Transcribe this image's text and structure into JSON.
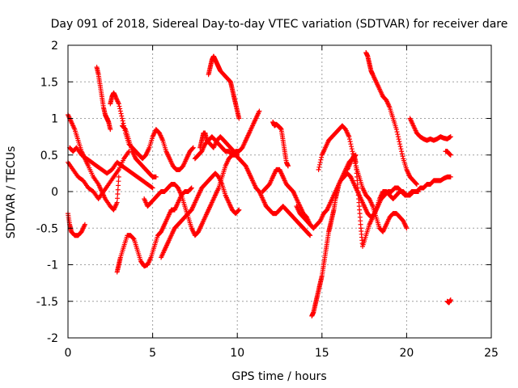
{
  "chart_data": {
    "type": "scatter",
    "title": "Day 091 of 2018, Sidereal Day-to-day VTEC variation (SDTVAR) for receiver dare",
    "xlabel": "GPS time / hours",
    "ylabel": "SDTVAR / TECUs",
    "xlim": [
      0,
      25
    ],
    "ylim": [
      -2,
      2
    ],
    "xticks": [
      0,
      5,
      10,
      15,
      20,
      25
    ],
    "yticks": [
      -2,
      -1.5,
      -1,
      -0.5,
      0,
      0.5,
      1,
      1.5,
      2
    ],
    "grid": true,
    "marker": "plus",
    "color": "#ff0000",
    "series": [
      {
        "x": [
          0.0,
          0.2,
          0.4,
          0.6,
          0.8,
          1.0,
          1.2,
          1.5,
          1.8,
          2.0,
          2.2,
          2.5,
          2.7,
          2.9,
          3.0
        ],
        "y": [
          1.05,
          0.95,
          0.85,
          0.7,
          0.55,
          0.45,
          0.35,
          0.2,
          0.1,
          0.0,
          -0.1,
          -0.2,
          -0.25,
          -0.15,
          0.2
        ]
      },
      {
        "x": [
          0.0,
          0.1,
          0.2,
          0.4,
          0.6,
          0.8,
          1.0
        ],
        "y": [
          -0.3,
          -0.45,
          -0.55,
          -0.6,
          -0.6,
          -0.55,
          -0.45
        ]
      },
      {
        "x": [
          0.1,
          0.3,
          0.5,
          0.8,
          1.1,
          1.4,
          1.7,
          2.0,
          2.3,
          2.6,
          2.9,
          3.2,
          3.5,
          3.8,
          4.1,
          4.4,
          4.7,
          5.0
        ],
        "y": [
          0.6,
          0.55,
          0.6,
          0.5,
          0.45,
          0.4,
          0.35,
          0.3,
          0.25,
          0.3,
          0.4,
          0.35,
          0.3,
          0.25,
          0.2,
          0.15,
          0.1,
          0.05
        ]
      },
      {
        "x": [
          0.0,
          0.3,
          0.6,
          0.9,
          1.2,
          1.5,
          1.8,
          2.1,
          2.4,
          2.7,
          3.0,
          3.3,
          3.6
        ],
        "y": [
          0.4,
          0.3,
          0.2,
          0.15,
          0.05,
          0.0,
          -0.1,
          0.0,
          0.1,
          0.2,
          0.3,
          0.45,
          0.55
        ]
      },
      {
        "x": [
          1.7,
          1.8,
          1.9,
          2.0,
          2.1,
          2.2,
          2.3,
          2.4,
          2.5
        ],
        "y": [
          1.7,
          1.6,
          1.45,
          1.3,
          1.15,
          1.05,
          1.0,
          0.95,
          0.85
        ]
      },
      {
        "x": [
          2.5,
          2.6,
          2.7,
          2.8,
          3.0,
          3.2,
          3.4,
          3.6,
          3.8,
          4.0,
          4.2,
          4.4,
          4.6,
          4.8,
          5.0,
          5.2,
          5.4,
          5.6,
          5.8,
          6.0,
          6.2,
          6.4,
          6.6,
          6.8,
          7.0,
          7.2,
          7.4
        ],
        "y": [
          1.2,
          1.3,
          1.35,
          1.3,
          1.2,
          1.0,
          0.8,
          0.65,
          0.6,
          0.55,
          0.5,
          0.45,
          0.5,
          0.6,
          0.75,
          0.85,
          0.8,
          0.7,
          0.55,
          0.45,
          0.35,
          0.3,
          0.3,
          0.35,
          0.45,
          0.55,
          0.6
        ]
      },
      {
        "x": [
          2.9,
          3.0,
          3.1,
          3.3,
          3.5,
          3.7,
          3.9,
          4.1,
          4.3,
          4.5,
          4.7,
          4.9,
          5.1,
          5.3,
          5.5,
          5.7,
          5.9,
          6.1,
          6.3,
          6.5,
          6.7,
          6.9,
          7.1,
          7.3
        ],
        "y": [
          -1.1,
          -1.0,
          -0.9,
          -0.75,
          -0.6,
          -0.6,
          -0.65,
          -0.8,
          -0.95,
          -1.02,
          -1.0,
          -0.9,
          -0.75,
          -0.6,
          -0.55,
          -0.45,
          -0.35,
          -0.25,
          -0.25,
          -0.15,
          -0.05,
          0.0,
          0.0,
          0.05
        ]
      },
      {
        "x": [
          3.2,
          3.4,
          3.6,
          3.8,
          4.0,
          4.2,
          4.4,
          4.6,
          4.8,
          5.0,
          5.2
        ],
        "y": [
          0.9,
          0.85,
          0.7,
          0.55,
          0.45,
          0.4,
          0.35,
          0.3,
          0.25,
          0.2,
          0.2
        ]
      },
      {
        "x": [
          4.5,
          4.7,
          4.9,
          5.1,
          5.3,
          5.5,
          5.7,
          5.9,
          6.1,
          6.3,
          6.5,
          6.7,
          6.9,
          7.1,
          7.3,
          7.5,
          7.7,
          7.9,
          8.1,
          8.3,
          8.5,
          8.7,
          8.9,
          9.1,
          9.3,
          9.5,
          9.7,
          9.9,
          10.1,
          10.3,
          10.5,
          10.7,
          10.9,
          11.1,
          11.3
        ],
        "y": [
          -0.1,
          -0.2,
          -0.15,
          -0.1,
          -0.05,
          0.0,
          0.0,
          0.05,
          0.1,
          0.1,
          0.05,
          -0.05,
          -0.2,
          -0.35,
          -0.5,
          -0.6,
          -0.55,
          -0.45,
          -0.35,
          -0.25,
          -0.15,
          -0.05,
          0.05,
          0.2,
          0.35,
          0.45,
          0.5,
          0.55,
          0.55,
          0.6,
          0.7,
          0.8,
          0.9,
          1.0,
          1.1
        ]
      },
      {
        "x": [
          5.5,
          5.7,
          5.9,
          6.1,
          6.3,
          6.5,
          6.7,
          6.9,
          7.1,
          7.3,
          7.5,
          7.7,
          7.9,
          8.1,
          8.3,
          8.5,
          8.7,
          8.9,
          9.1,
          9.3,
          9.5,
          9.7,
          9.9,
          10.1
        ],
        "y": [
          -0.9,
          -0.8,
          -0.7,
          -0.6,
          -0.5,
          -0.45,
          -0.4,
          -0.35,
          -0.3,
          -0.25,
          -0.15,
          -0.05,
          0.05,
          0.1,
          0.15,
          0.2,
          0.25,
          0.2,
          0.1,
          -0.05,
          -0.15,
          -0.25,
          -0.3,
          -0.25
        ]
      },
      {
        "x": [
          7.8,
          7.9,
          8.0,
          8.1,
          8.2,
          8.4,
          8.6,
          8.8,
          9.0,
          9.2,
          9.4,
          9.6,
          9.8,
          10.0
        ],
        "y": [
          0.6,
          0.7,
          0.8,
          0.8,
          0.7,
          0.65,
          0.6,
          0.7,
          0.75,
          0.7,
          0.65,
          0.6,
          0.55,
          0.5
        ]
      },
      {
        "x": [
          8.3,
          8.4,
          8.5,
          8.6,
          8.7,
          8.8,
          8.9,
          9.0,
          9.2,
          9.4,
          9.6,
          9.7,
          9.8,
          9.9,
          10.0,
          10.1
        ],
        "y": [
          1.6,
          1.7,
          1.8,
          1.85,
          1.8,
          1.75,
          1.7,
          1.65,
          1.6,
          1.55,
          1.5,
          1.4,
          1.3,
          1.2,
          1.1,
          1.0
        ]
      },
      {
        "x": [
          7.5,
          7.7,
          7.9,
          8.1,
          8.3,
          8.5,
          8.7,
          8.9,
          9.1,
          9.3,
          9.5,
          9.7,
          9.9,
          10.1,
          10.3,
          10.5,
          10.7,
          10.9,
          11.1,
          11.3,
          11.5,
          11.7,
          11.9,
          12.1,
          12.3,
          12.5,
          12.7,
          12.9,
          13.1,
          13.3,
          13.5,
          13.7,
          13.9,
          14.1,
          14.3
        ],
        "y": [
          0.45,
          0.5,
          0.55,
          0.65,
          0.7,
          0.75,
          0.7,
          0.65,
          0.6,
          0.55,
          0.55,
          0.5,
          0.5,
          0.45,
          0.4,
          0.35,
          0.25,
          0.15,
          0.05,
          0.0,
          -0.1,
          -0.2,
          -0.25,
          -0.3,
          -0.3,
          -0.25,
          -0.2,
          -0.25,
          -0.3,
          -0.35,
          -0.4,
          -0.45,
          -0.5,
          -0.55,
          -0.6
        ]
      },
      {
        "x": [
          11.5,
          11.7,
          11.9,
          12.1,
          12.3,
          12.5,
          12.7,
          12.9,
          13.1,
          13.3,
          13.5,
          13.7,
          13.9,
          14.1,
          14.3,
          14.5
        ],
        "y": [
          0.0,
          0.05,
          0.1,
          0.2,
          0.3,
          0.3,
          0.2,
          0.1,
          0.05,
          0.0,
          -0.1,
          -0.2,
          -0.3,
          -0.35,
          -0.45,
          -0.5
        ]
      },
      {
        "x": [
          12.1,
          12.2,
          12.3,
          12.4,
          12.5,
          12.6,
          12.7,
          12.8,
          12.9,
          13.0
        ],
        "y": [
          0.95,
          0.9,
          0.92,
          0.9,
          0.88,
          0.85,
          0.7,
          0.55,
          0.4,
          0.35
        ]
      },
      {
        "x": [
          13.5,
          13.7,
          13.9,
          14.1,
          14.3,
          14.5,
          14.7,
          14.9,
          15.1,
          15.3,
          15.5,
          15.7,
          15.9,
          16.1,
          16.3,
          16.5,
          16.7,
          16.9,
          17.1,
          17.3,
          17.5,
          17.7,
          17.9,
          18.1,
          18.3,
          18.5,
          18.7,
          18.9,
          19.1,
          19.3,
          19.5,
          19.7,
          19.9,
          20.1,
          20.3,
          20.5,
          20.7
        ],
        "y": [
          -0.2,
          -0.3,
          -0.35,
          -0.4,
          -0.45,
          -0.5,
          -0.45,
          -0.4,
          -0.3,
          -0.25,
          -0.15,
          -0.05,
          0.05,
          0.15,
          0.2,
          0.25,
          0.2,
          0.1,
          0.0,
          -0.1,
          -0.2,
          -0.3,
          -0.35,
          -0.3,
          -0.2,
          -0.1,
          -0.05,
          0.0,
          0.0,
          0.05,
          0.05,
          0.0,
          -0.05,
          -0.05,
          0.0,
          0.0,
          0.0
        ]
      },
      {
        "x": [
          14.4,
          14.5,
          14.6,
          14.7,
          14.8,
          14.9,
          15.0,
          15.1,
          15.2,
          15.3,
          15.4,
          15.5,
          15.6,
          15.7,
          15.8,
          15.9,
          16.0,
          16.2,
          16.4,
          16.6,
          16.8,
          17.0
        ],
        "y": [
          -1.7,
          -1.65,
          -1.55,
          -1.45,
          -1.35,
          -1.25,
          -1.15,
          -1.0,
          -0.85,
          -0.7,
          -0.55,
          -0.45,
          -0.35,
          -0.25,
          -0.1,
          0.0,
          0.1,
          0.2,
          0.3,
          0.4,
          0.45,
          0.5
        ]
      },
      {
        "x": [
          14.8,
          15.0,
          15.2,
          15.4,
          15.6,
          15.8,
          16.0,
          16.2,
          16.4,
          16.6,
          16.8,
          17.0,
          17.2,
          17.4,
          17.6,
          17.8,
          18.0,
          18.2,
          18.4,
          18.6,
          18.8,
          19.0,
          19.2,
          19.4,
          19.6,
          19.8,
          20.0
        ],
        "y": [
          0.3,
          0.5,
          0.6,
          0.7,
          0.75,
          0.8,
          0.85,
          0.9,
          0.85,
          0.75,
          0.55,
          0.35,
          0.2,
          0.05,
          -0.05,
          -0.1,
          -0.2,
          -0.35,
          -0.5,
          -0.55,
          -0.45,
          -0.35,
          -0.3,
          -0.3,
          -0.35,
          -0.4,
          -0.5
        ]
      },
      {
        "x": [
          16.5,
          16.7,
          16.9,
          17.0,
          17.1,
          17.2,
          17.3,
          17.4,
          17.6,
          17.8,
          18.0,
          18.2,
          18.4,
          18.6,
          18.8,
          19.0,
          19.2,
          19.4,
          19.6,
          19.8,
          20.0,
          20.2,
          20.4,
          20.6,
          20.8,
          21.0,
          21.2,
          21.4,
          21.6,
          21.8,
          22.0,
          22.2,
          22.4,
          22.6
        ],
        "y": [
          0.3,
          0.4,
          0.5,
          0.4,
          0.1,
          -0.2,
          -0.5,
          -0.75,
          -0.6,
          -0.45,
          -0.35,
          -0.25,
          -0.1,
          0.0,
          0.0,
          -0.05,
          -0.1,
          -0.05,
          0.0,
          0.0,
          -0.05,
          -0.05,
          0.0,
          0.0,
          0.05,
          0.05,
          0.1,
          0.1,
          0.15,
          0.15,
          0.15,
          0.18,
          0.2,
          0.2
        ]
      },
      {
        "x": [
          17.6,
          17.7,
          17.8,
          17.9,
          18.0,
          18.2,
          18.4,
          18.6,
          18.8,
          19.0,
          19.2,
          19.4,
          19.6,
          19.8,
          20.0,
          20.2,
          20.4,
          20.6
        ],
        "y": [
          1.9,
          1.85,
          1.75,
          1.65,
          1.6,
          1.5,
          1.4,
          1.3,
          1.25,
          1.15,
          1.0,
          0.85,
          0.65,
          0.45,
          0.3,
          0.2,
          0.15,
          0.1
        ]
      },
      {
        "x": [
          20.2,
          20.4,
          20.6,
          20.8,
          21.0,
          21.2,
          21.4,
          21.6,
          21.8,
          22.0,
          22.2,
          22.4,
          22.6
        ],
        "y": [
          1.0,
          0.9,
          0.8,
          0.75,
          0.72,
          0.7,
          0.72,
          0.7,
          0.72,
          0.75,
          0.73,
          0.72,
          0.75
        ]
      },
      {
        "x": [
          22.3,
          22.4,
          22.5,
          22.6
        ],
        "y": [
          0.55,
          0.55,
          0.52,
          0.5
        ]
      },
      {
        "x": [
          22.4,
          22.5,
          22.6
        ],
        "y": [
          -1.5,
          -1.52,
          -1.48
        ]
      }
    ]
  }
}
